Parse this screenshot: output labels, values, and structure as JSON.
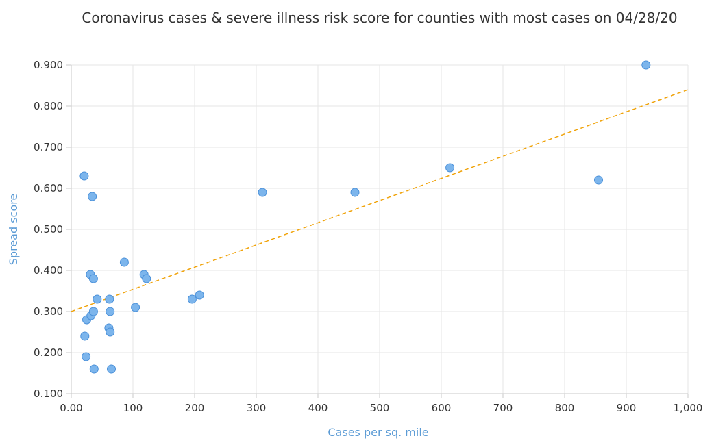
{
  "chart_data": {
    "type": "scatter",
    "title": "Coronavirus cases & severe illness risk score for counties with most cases on 04/28/20",
    "xlabel": "Cases per sq. mile",
    "ylabel": "Spread score",
    "xlim": [
      0,
      1000
    ],
    "ylim": [
      0.1,
      0.9
    ],
    "x_ticks": [
      0,
      100,
      200,
      300,
      400,
      500,
      600,
      700,
      800,
      900,
      1000
    ],
    "x_tick_labels": [
      "0.00",
      "100",
      "200",
      "300",
      "400",
      "500",
      "600",
      "700",
      "800",
      "900",
      "1,000"
    ],
    "y_ticks": [
      0.1,
      0.2,
      0.3,
      0.4,
      0.5,
      0.6,
      0.7,
      0.8,
      0.9
    ],
    "y_tick_labels": [
      "0.100",
      "0.200",
      "0.300",
      "0.400",
      "0.500",
      "0.600",
      "0.700",
      "0.800",
      "0.900"
    ],
    "grid": true,
    "legend": "none",
    "points": [
      {
        "x": 21,
        "y": 0.63
      },
      {
        "x": 34,
        "y": 0.58
      },
      {
        "x": 22,
        "y": 0.24
      },
      {
        "x": 24,
        "y": 0.19
      },
      {
        "x": 37,
        "y": 0.16
      },
      {
        "x": 25,
        "y": 0.28
      },
      {
        "x": 32,
        "y": 0.29
      },
      {
        "x": 36,
        "y": 0.3
      },
      {
        "x": 42,
        "y": 0.33
      },
      {
        "x": 31,
        "y": 0.39
      },
      {
        "x": 36,
        "y": 0.38
      },
      {
        "x": 62,
        "y": 0.33
      },
      {
        "x": 63,
        "y": 0.3
      },
      {
        "x": 61,
        "y": 0.26
      },
      {
        "x": 63,
        "y": 0.25
      },
      {
        "x": 65,
        "y": 0.16
      },
      {
        "x": 86,
        "y": 0.42
      },
      {
        "x": 104,
        "y": 0.31
      },
      {
        "x": 118,
        "y": 0.39
      },
      {
        "x": 122,
        "y": 0.38
      },
      {
        "x": 196,
        "y": 0.33
      },
      {
        "x": 208,
        "y": 0.34
      },
      {
        "x": 310,
        "y": 0.59
      },
      {
        "x": 460,
        "y": 0.59
      },
      {
        "x": 614,
        "y": 0.65
      },
      {
        "x": 855,
        "y": 0.62
      },
      {
        "x": 932,
        "y": 0.9
      }
    ],
    "trendline": {
      "style": "dashed",
      "color": "#f0a30a",
      "x": [
        0,
        1000
      ],
      "y": [
        0.3,
        0.84
      ]
    },
    "colors": {
      "point_fill": "#7cb5ec",
      "point_stroke": "#4a90d9",
      "axis_label": "#5b9bd5"
    }
  }
}
